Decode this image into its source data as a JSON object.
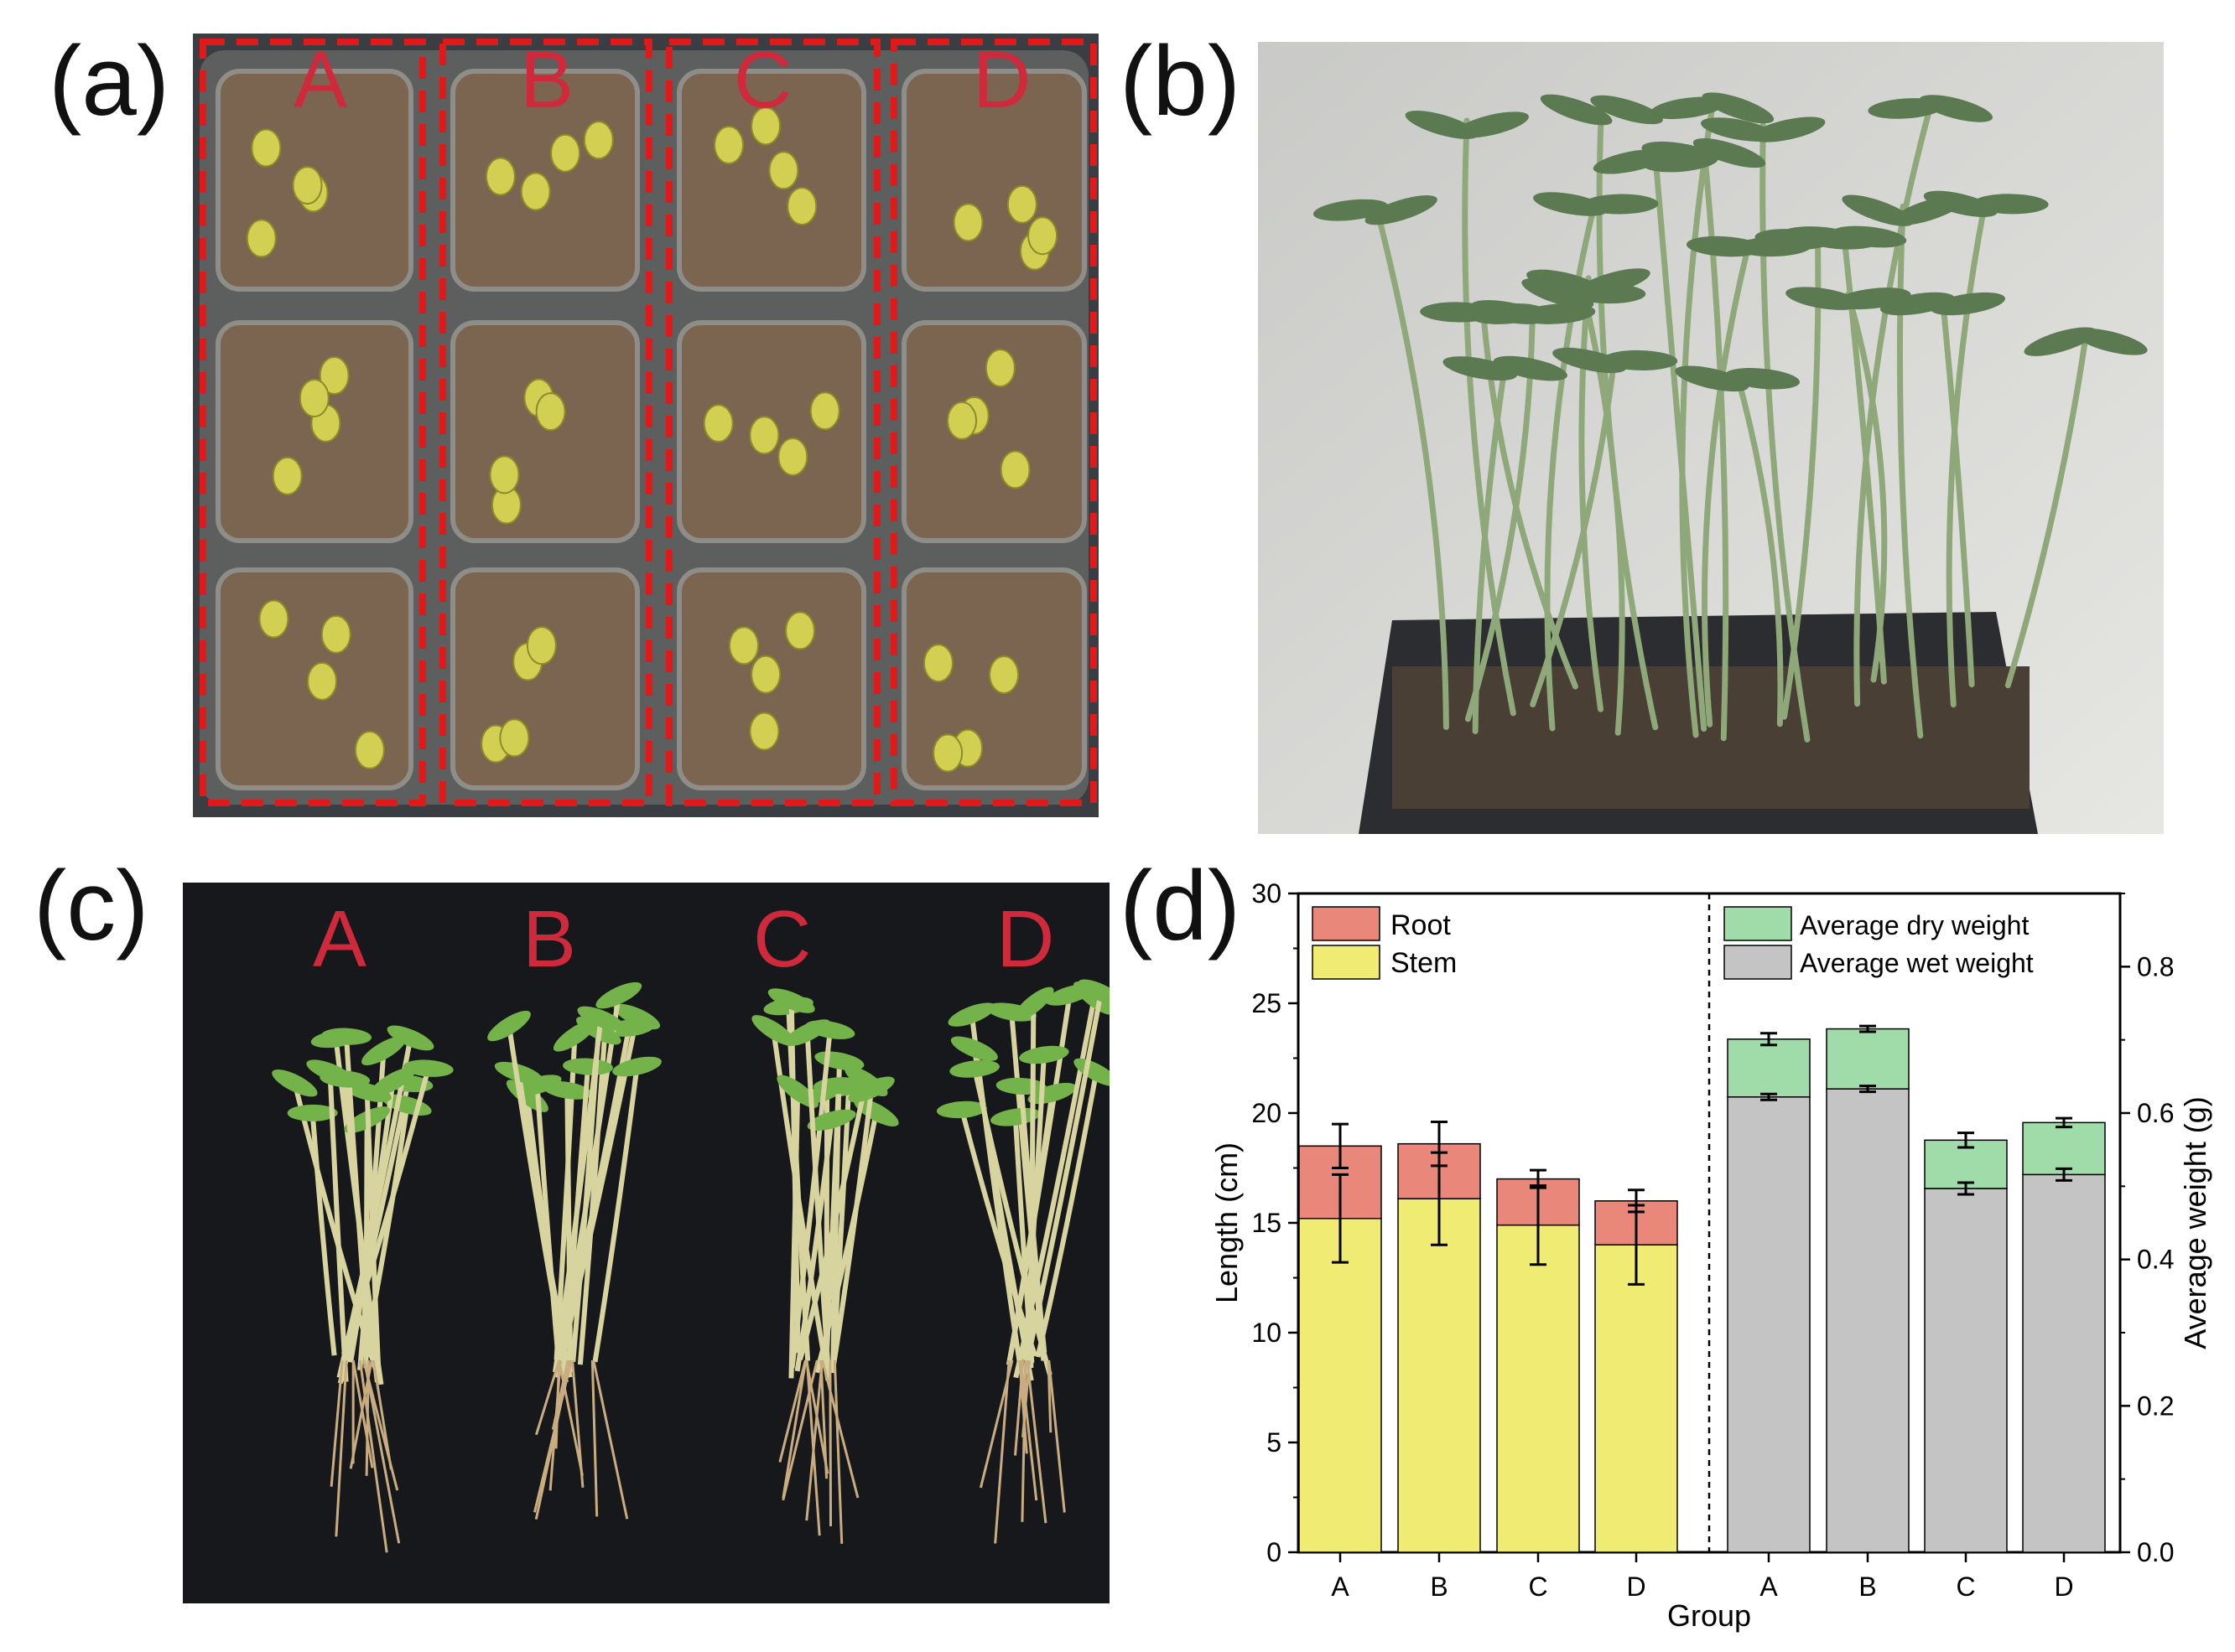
{
  "panels": {
    "a": {
      "label": "(a)",
      "letters": [
        "A",
        "B",
        "C",
        "D"
      ]
    },
    "b": {
      "label": "(b)"
    },
    "c": {
      "label": "(c)",
      "letters": [
        "A",
        "B",
        "C",
        "D"
      ]
    },
    "d": {
      "label": "(d)"
    }
  },
  "colors": {
    "root": "#e8877a",
    "stem": "#f0ec73",
    "dry": "#9fdcaa",
    "wet": "#c4c4c4",
    "group_letter": "#cf2a3b",
    "dash_box": "#e01a1a"
  },
  "chart_data": {
    "type": "bar",
    "xlabel": "Group",
    "left": {
      "ylabel": "Length (cm)",
      "ylim": [
        0,
        30
      ],
      "yticks": [
        "0",
        "5",
        "10",
        "15",
        "20",
        "25",
        "30"
      ],
      "categories": [
        "A",
        "B",
        "C",
        "D"
      ],
      "stacked": true,
      "series": [
        {
          "name": "Stem",
          "values": [
            15.2,
            16.1,
            14.9,
            14.0
          ],
          "err": [
            2.0,
            2.1,
            1.8,
            1.8
          ]
        },
        {
          "name": "Root",
          "values": [
            3.3,
            2.5,
            2.1,
            2.0
          ],
          "err": [
            1.0,
            1.0,
            0.4,
            0.5
          ]
        }
      ]
    },
    "right": {
      "ylabel": "Average weight (g)",
      "ylim": [
        0,
        0.9
      ],
      "yticks": [
        "0.0",
        "0.2",
        "0.4",
        "0.6",
        "0.8"
      ],
      "categories": [
        "A",
        "B",
        "C",
        "D"
      ],
      "stacked": true,
      "series": [
        {
          "name": "Average wet  weight",
          "values": [
            0.622,
            0.633,
            0.497,
            0.516
          ],
          "err": [
            0.004,
            0.004,
            0.008,
            0.008
          ]
        },
        {
          "name": "Average dry  weight",
          "values": [
            0.079,
            0.082,
            0.066,
            0.071
          ],
          "err": [
            0.008,
            0.004,
            0.01,
            0.006
          ]
        }
      ]
    },
    "legend_left": [
      "Root",
      "Stem"
    ],
    "legend_right": [
      "Average dry  weight",
      "Average wet  weight"
    ]
  }
}
